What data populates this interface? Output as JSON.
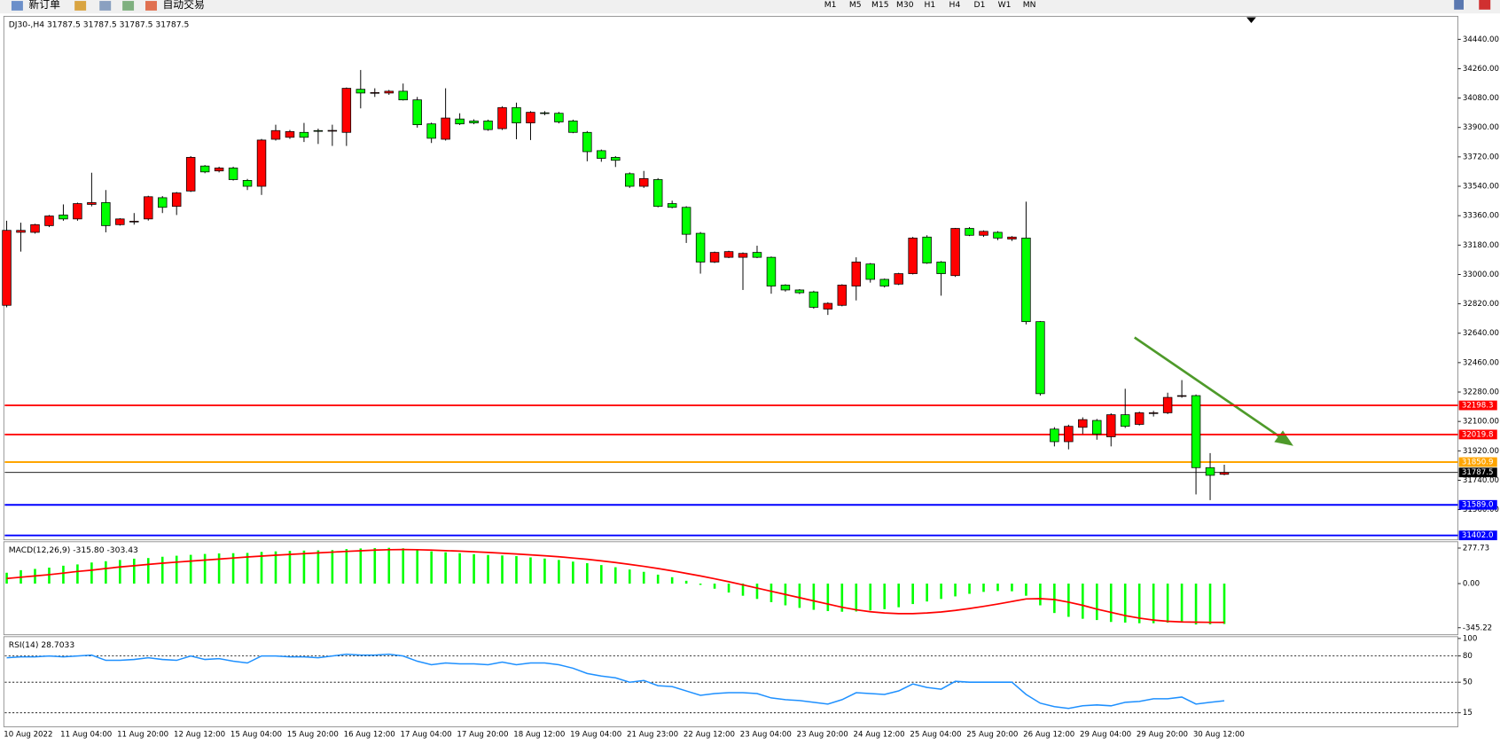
{
  "toolbar": {
    "buttons": [
      "新订单",
      "自动交易"
    ],
    "timeframes": [
      "M1",
      "M5",
      "M15",
      "M30",
      "H1",
      "H4",
      "D1",
      "W1",
      "MN"
    ]
  },
  "chart_data": [
    {
      "type": "candlestick",
      "title": "DJ30-,H4 31787.5 31787.5 31787.5 31787.5",
      "categories": [
        "10 Aug 2022",
        null,
        null,
        null,
        "11 Aug 04:00",
        null,
        null,
        null,
        "11 Aug 20:00",
        null,
        null,
        null,
        "12 Aug 12:00",
        null,
        null,
        null,
        "15 Aug 04:00",
        null,
        null,
        null,
        "15 Aug 20:00",
        null,
        null,
        null,
        "16 Aug 12:00",
        null,
        null,
        null,
        "17 Aug 04:00",
        null,
        null,
        null,
        "17 Aug 20:00",
        null,
        null,
        null,
        "18 Aug 12:00",
        null,
        null,
        null,
        "19 Aug 04:00",
        null,
        null,
        null,
        "21 Aug 23:00",
        null,
        null,
        null,
        "22 Aug 12:00",
        null,
        null,
        null,
        "23 Aug 04:00",
        null,
        null,
        null,
        "23 Aug 20:00",
        null,
        null,
        null,
        "24 Aug 12:00",
        null,
        null,
        null,
        "25 Aug 04:00",
        null,
        null,
        null,
        "25 Aug 20:00",
        null,
        null,
        null,
        "26 Aug 12:00",
        null,
        null,
        null,
        "29 Aug 04:00",
        null,
        null,
        null,
        "29 Aug 20:00",
        null,
        null,
        null,
        "30 Aug 12:00",
        null,
        null
      ],
      "open": [
        32811,
        33258,
        33258,
        33299,
        33364,
        33340,
        33429,
        33440,
        33305,
        33323,
        33340,
        33470,
        33417,
        33511,
        33664,
        33634,
        33652,
        33576,
        33540,
        33828,
        33840,
        33870,
        33881,
        33878,
        33870,
        34134,
        34111,
        34111,
        34122,
        34069,
        33922,
        33828,
        33952,
        33940,
        33940,
        33893,
        34022,
        33928,
        33990,
        33987,
        33940,
        33870,
        33758,
        33717,
        33617,
        33540,
        33581,
        33434,
        33411,
        33252,
        33076,
        33105,
        33105,
        33135,
        33105,
        32935,
        32905,
        32893,
        32788,
        32811,
        32929,
        33064,
        32970,
        32941,
        33005,
        33229,
        33076,
        32993,
        33282,
        33240,
        33258,
        33217,
        33223,
        32711,
        32053,
        31976,
        32064,
        32106,
        32006,
        32141,
        32082,
        32150,
        32153,
        32255,
        32258,
        31817,
        31776
      ],
      "high": [
        33329,
        33317,
        33310,
        33364,
        33429,
        33440,
        33623,
        33517,
        33345,
        33376,
        33482,
        33480,
        33505,
        33725,
        33670,
        33660,
        33660,
        33585,
        33830,
        33917,
        33885,
        33928,
        33893,
        33917,
        34145,
        34252,
        34140,
        34130,
        34169,
        34087,
        33930,
        34140,
        33987,
        33950,
        33948,
        34030,
        34052,
        34000,
        34000,
        33995,
        33948,
        33878,
        33765,
        33725,
        33625,
        33634,
        33590,
        33452,
        33418,
        33260,
        33140,
        33145,
        33135,
        33176,
        33110,
        32940,
        32910,
        32900,
        32830,
        32940,
        33105,
        33070,
        32975,
        33010,
        33230,
        33240,
        33082,
        33285,
        33290,
        33270,
        33265,
        33235,
        33446,
        32715,
        32065,
        32080,
        32125,
        32115,
        32150,
        32300,
        32160,
        32165,
        32276,
        32353,
        32265,
        31906,
        31835
      ],
      "low": [
        32799,
        33140,
        33250,
        33290,
        33329,
        33329,
        33417,
        33258,
        33299,
        33305,
        33330,
        33376,
        33364,
        33505,
        33620,
        33625,
        33575,
        33517,
        33487,
        33820,
        33830,
        33811,
        33799,
        33787,
        33787,
        34017,
        34087,
        34100,
        34065,
        33899,
        33805,
        33820,
        33915,
        33920,
        33880,
        33885,
        33828,
        33823,
        33975,
        33925,
        33865,
        33693,
        33690,
        33658,
        33530,
        33530,
        33411,
        33405,
        33193,
        33005,
        33070,
        33100,
        32905,
        33100,
        32882,
        32895,
        32880,
        32790,
        32752,
        32805,
        32841,
        32950,
        32920,
        32935,
        33000,
        33065,
        32870,
        32985,
        33235,
        33230,
        33210,
        33205,
        32694,
        32258,
        31947,
        31929,
        32023,
        31988,
        31947,
        32060,
        32075,
        32130,
        32145,
        32245,
        31653,
        31618,
        31770
      ],
      "close": [
        33270,
        33270,
        33305,
        33358,
        33340,
        33434,
        33440,
        33299,
        33340,
        33326,
        33476,
        33411,
        33499,
        33717,
        33628,
        33652,
        33581,
        33540,
        33823,
        33881,
        33875,
        33840,
        33878,
        33882,
        34140,
        34111,
        34114,
        34122,
        34069,
        33917,
        33834,
        33958,
        33922,
        33928,
        33887,
        34022,
        33928,
        33993,
        33987,
        33934,
        33870,
        33752,
        33711,
        33699,
        33540,
        33587,
        33417,
        33411,
        33246,
        33076,
        33135,
        33140,
        33129,
        33105,
        32929,
        32905,
        32888,
        32799,
        32823,
        32935,
        33076,
        32970,
        32929,
        33005,
        33223,
        33070,
        33005,
        33282,
        33240,
        33264,
        33223,
        33229,
        32711,
        32270,
        31976,
        32070,
        32111,
        32023,
        32141,
        32070,
        32153,
        32153,
        32247,
        32258,
        31817,
        31770,
        31787.5
      ],
      "up_color": "#ff0000",
      "down_color": "#00ff00",
      "ylim": [
        31375,
        34575
      ],
      "yticks": [
        {
          "value": 34440,
          "label": "34440.00"
        },
        {
          "value": 34260,
          "label": "34260.00"
        },
        {
          "value": 34080,
          "label": "34080.00"
        },
        {
          "value": 33900,
          "label": "33900.00"
        },
        {
          "value": 33720,
          "label": "33720.00"
        },
        {
          "value": 33540,
          "label": "33540.00"
        },
        {
          "value": 33360,
          "label": "33360.00"
        },
        {
          "value": 33180,
          "label": "33180.00"
        },
        {
          "value": 33000,
          "label": "33000.00"
        },
        {
          "value": 32820,
          "label": "32820.00"
        },
        {
          "value": 32640,
          "label": "32640.00"
        },
        {
          "value": 32460,
          "label": "32460.00"
        },
        {
          "value": 32280,
          "label": "32280.00"
        },
        {
          "value": 32100,
          "label": "32100.00"
        },
        {
          "value": 31920,
          "label": "31920.00"
        },
        {
          "value": 31740,
          "label": "31740.00"
        },
        {
          "value": 31560,
          "label": "31560.00"
        }
      ],
      "levels": [
        {
          "value": 32198.3,
          "label": "32198.3",
          "color": "#ff0000"
        },
        {
          "value": 32019.8,
          "label": "32019.8",
          "color": "#ff0000"
        },
        {
          "value": 31850.9,
          "label": "31850.9",
          "color": "#ffa500"
        },
        {
          "value": 31787.5,
          "label": "31787.5",
          "color": "#000000"
        },
        {
          "value": 31589,
          "label": "31589.0",
          "color": "#0000ff"
        },
        {
          "value": 31402,
          "label": "31402.0",
          "color": "#0000ff"
        }
      ]
    },
    {
      "type": "macd",
      "title": "MACD(12,26,9) -315.80 -303.43",
      "values": [
        85,
        105,
        115,
        125,
        140,
        150,
        165,
        175,
        185,
        195,
        200,
        210,
        218,
        225,
        232,
        236,
        238,
        240,
        248,
        252,
        256,
        258,
        260,
        262,
        270,
        275,
        278,
        280,
        276,
        265,
        252,
        245,
        238,
        230,
        224,
        220,
        215,
        205,
        196,
        185,
        172,
        160,
        145,
        128,
        110,
        92,
        70,
        50,
        22,
        -10,
        -40,
        -70,
        -95,
        -120,
        -145,
        -170,
        -190,
        -205,
        -215,
        -220,
        -218,
        -210,
        -200,
        -185,
        -160,
        -140,
        -120,
        -100,
        -80,
        -65,
        -58,
        -60,
        -95,
        -170,
        -230,
        -260,
        -275,
        -285,
        -300,
        -305,
        -310,
        -310,
        -305,
        -300,
        -320,
        -318,
        -315.8
      ],
      "signal": [
        40,
        50,
        60,
        70,
        82,
        95,
        105,
        118,
        130,
        140,
        150,
        160,
        168,
        176,
        184,
        192,
        200,
        208,
        215,
        222,
        228,
        234,
        240,
        246,
        252,
        257,
        262,
        265,
        266,
        265,
        262,
        258,
        254,
        249,
        244,
        238,
        232,
        225,
        218,
        210,
        200,
        190,
        178,
        165,
        150,
        135,
        118,
        100,
        80,
        60,
        38,
        15,
        -10,
        -35,
        -60,
        -85,
        -110,
        -135,
        -160,
        -185,
        -205,
        -220,
        -230,
        -235,
        -235,
        -230,
        -222,
        -210,
        -195,
        -178,
        -160,
        -140,
        -120,
        -118,
        -125,
        -145,
        -170,
        -200,
        -225,
        -250,
        -270,
        -285,
        -295,
        -300,
        -302,
        -303,
        -303.43
      ],
      "color": "#00ff00",
      "signal_color": "#ff0000",
      "ylim": [
        -400,
        320
      ],
      "yticks": [
        277.73,
        {
          "value": 0,
          "label": "0.00"
        },
        -345.22
      ]
    },
    {
      "type": "line",
      "title": "RSI(14) 28.7033",
      "values": [
        78,
        79,
        79,
        80,
        79,
        80,
        81,
        75,
        75,
        76,
        78,
        76,
        75,
        80,
        76,
        77,
        74,
        72,
        80,
        80,
        79,
        79,
        78,
        80,
        82,
        81,
        81,
        82,
        80,
        74,
        70,
        72,
        71,
        71,
        70,
        73,
        70,
        72,
        72,
        70,
        66,
        60,
        57,
        55,
        50,
        52,
        46,
        45,
        40,
        35,
        37,
        38,
        38,
        37,
        32,
        30,
        29,
        27,
        25,
        30,
        38,
        37,
        36,
        40,
        48,
        44,
        42,
        51,
        50,
        50,
        50,
        50,
        36,
        26,
        22,
        20,
        23,
        24,
        23,
        27,
        28,
        31,
        31,
        33,
        25,
        27,
        28.7033
      ],
      "color": "#1e90ff",
      "ylim": [
        -1,
        101
      ],
      "yticks": [
        100,
        80,
        50,
        15
      ],
      "levels": [
        80,
        50,
        15
      ]
    }
  ]
}
